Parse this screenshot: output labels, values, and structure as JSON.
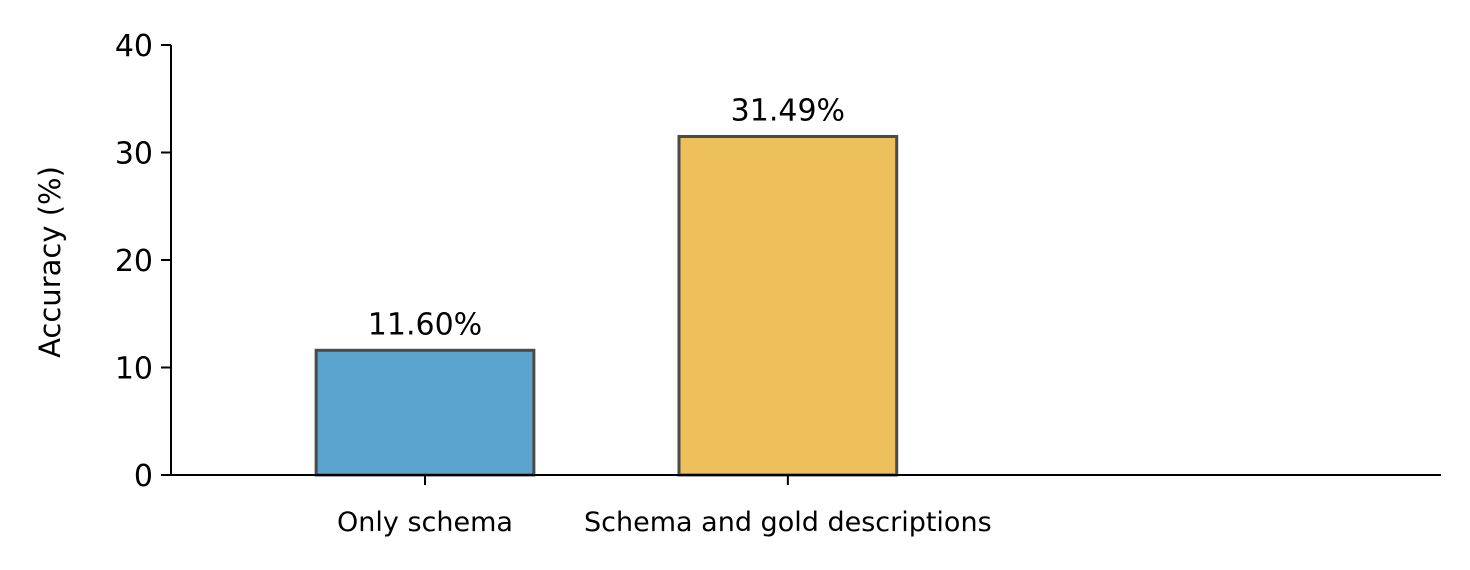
{
  "chart_data": {
    "type": "bar",
    "categories": [
      "Only schema",
      "Schema and gold descriptions"
    ],
    "values": [
      11.6,
      31.49
    ],
    "data_labels": [
      "11.60%",
      "31.49%"
    ],
    "bar_colors": [
      "#5ba4cf",
      "#eec05c"
    ],
    "bar_edge_color": "#4a4a4a",
    "title": "",
    "xlabel": "",
    "ylabel": "Accuracy (%)",
    "ylim": [
      0,
      40
    ],
    "yticks": [
      0,
      10,
      20,
      30,
      40
    ],
    "ytick_labels": [
      "0",
      "10",
      "20",
      "30",
      "40"
    ],
    "grid": false,
    "legend": "none"
  }
}
